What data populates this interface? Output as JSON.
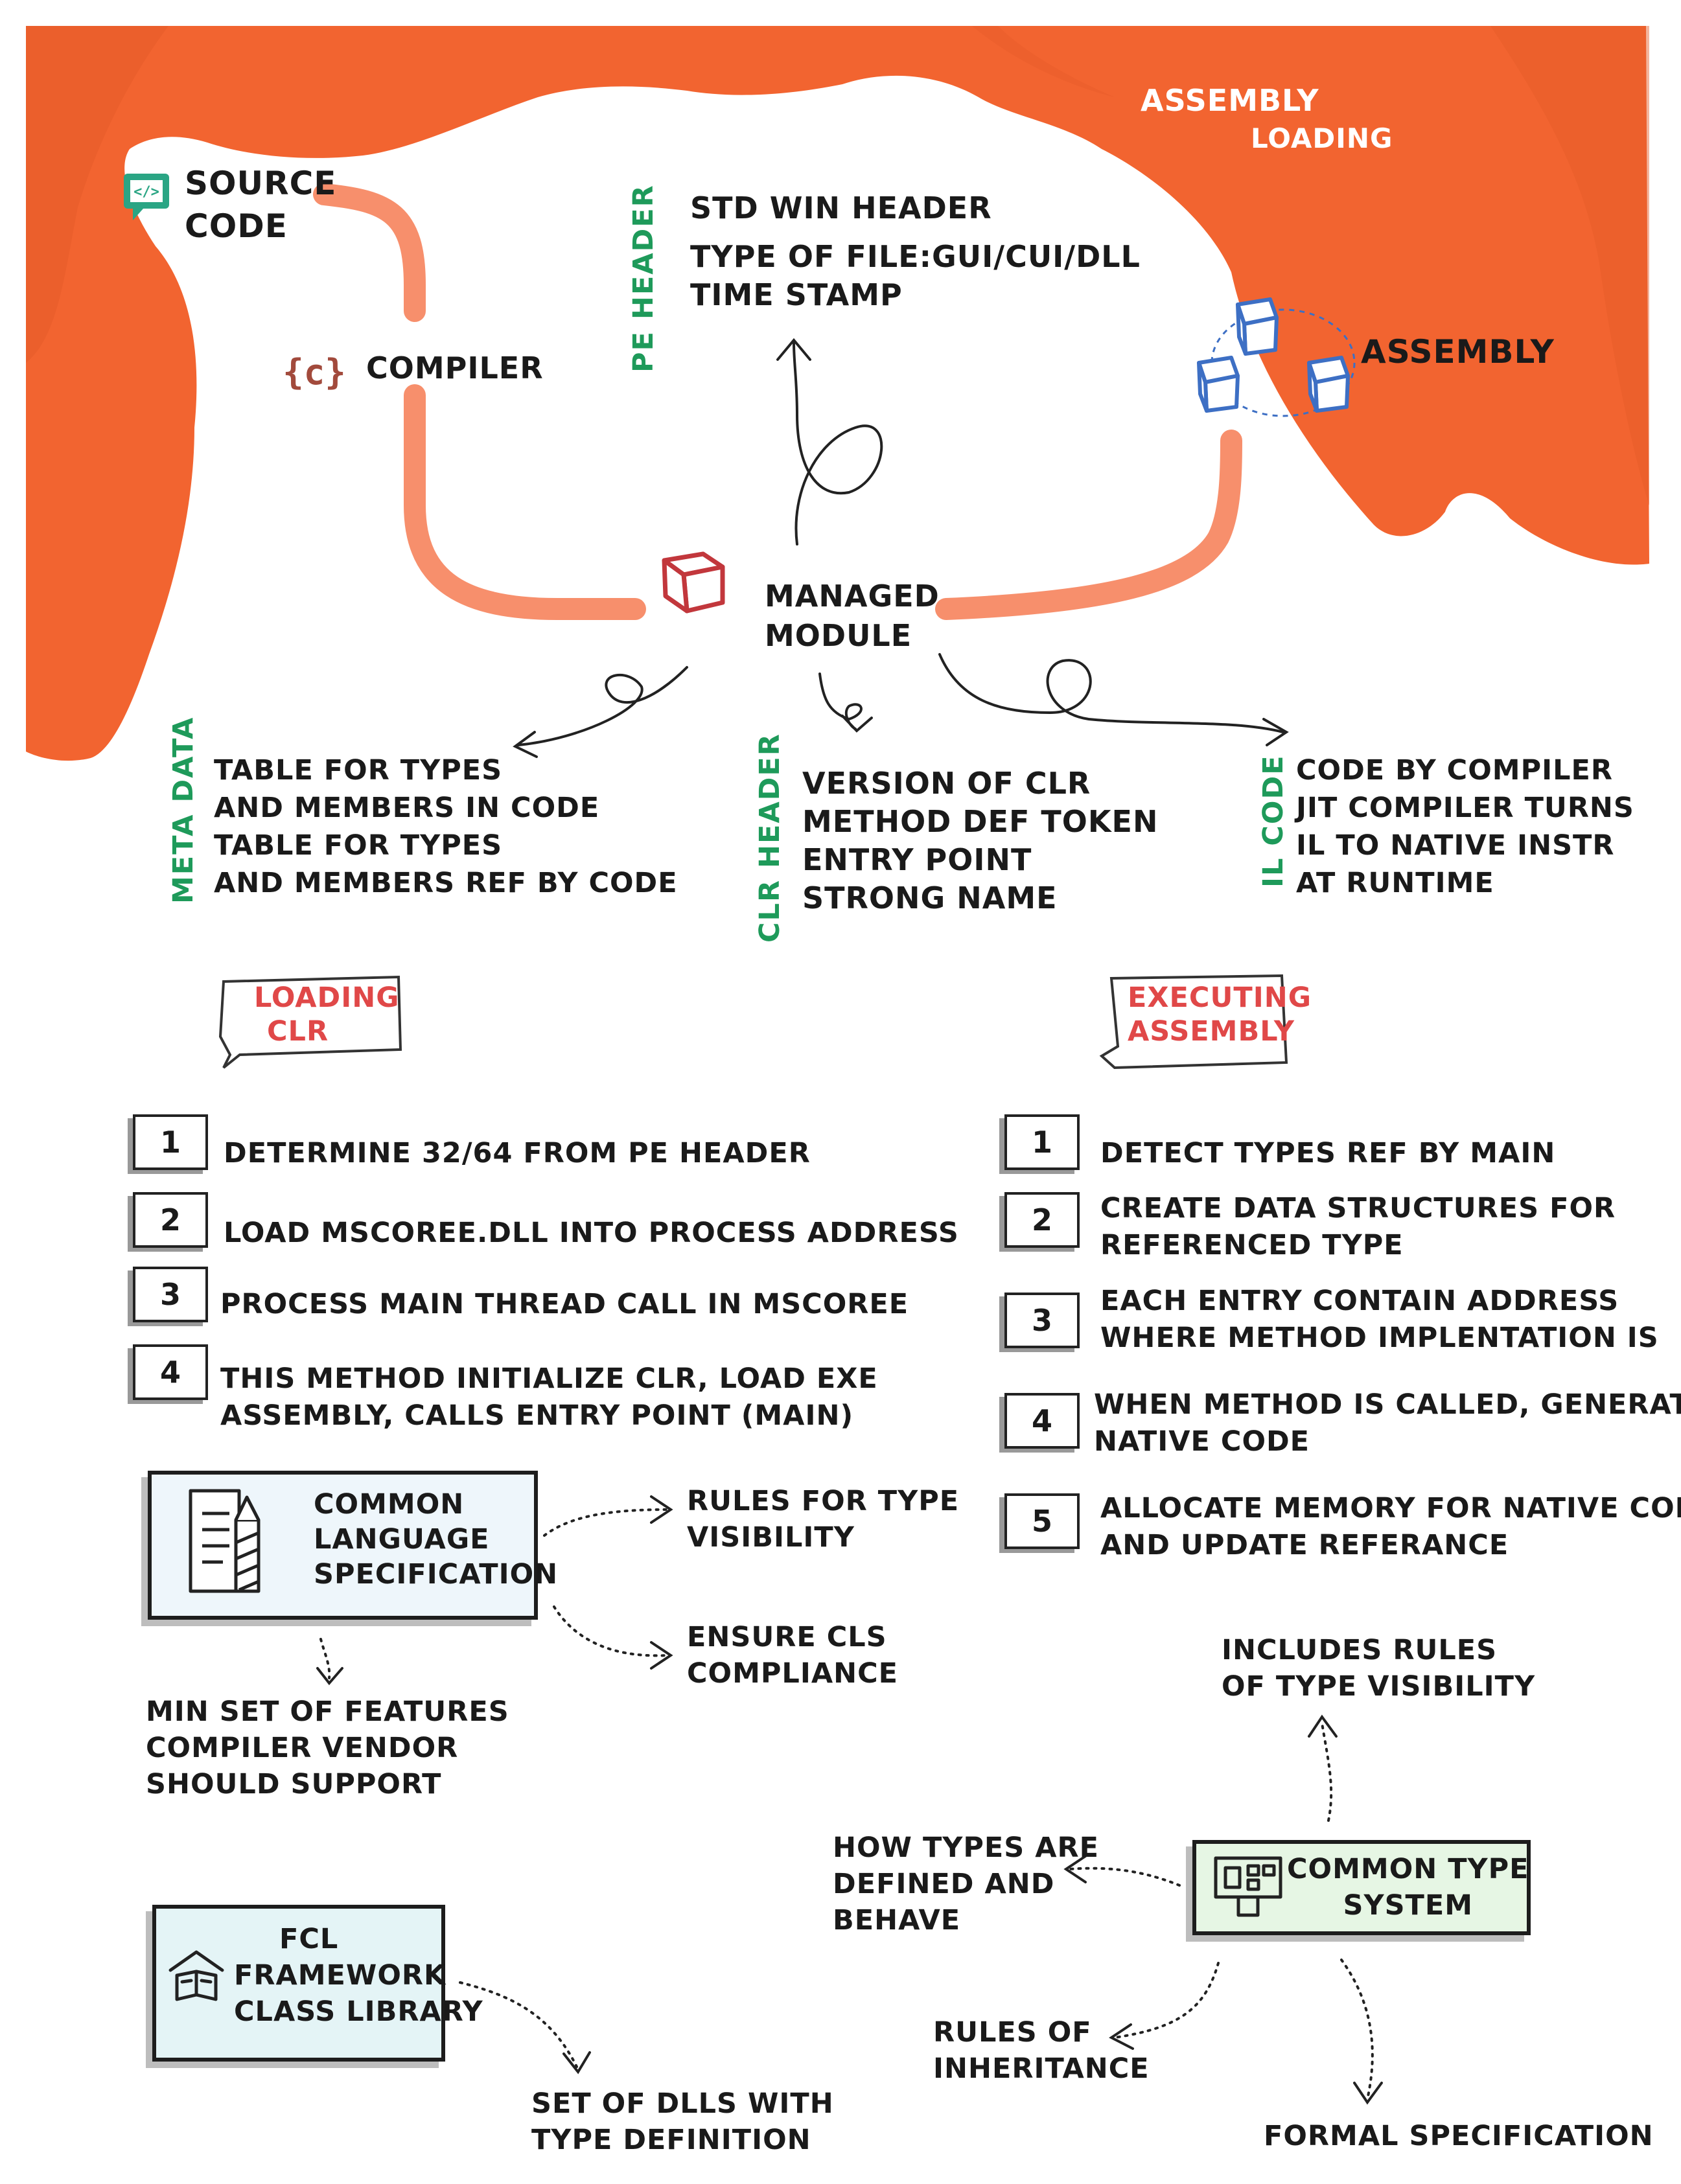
{
  "colors": {
    "curtain": "#f26430",
    "pipe": "#f78f6c",
    "accent_green": "#1e9a5a",
    "accent_red": "#e04848",
    "cube_blue": "#3d6fc4",
    "cube_red": "#c2373c"
  },
  "header": {
    "line1": "ASSEMBLY",
    "line2": "LOADING"
  },
  "source": {
    "line1": "SOURCE",
    "line2": "CODE",
    "icon": "code-monitor-icon"
  },
  "compiler": {
    "label": "COMPILER",
    "icon": "braces-c-icon"
  },
  "pe_header": {
    "tag": "PE HEADER",
    "lines": [
      "STD WIN HEADER",
      "TYPE OF FILE:GUI/CUI/DLL",
      "TIME STAMP"
    ]
  },
  "assembly": {
    "label": "ASSEMBLY",
    "icon": "cubes-icon"
  },
  "managed_module": {
    "line1": "MANAGED",
    "line2": "MODULE",
    "icon": "cube-icon"
  },
  "metadata": {
    "tag": "META DATA",
    "lines": [
      "TABLE FOR TYPES",
      "AND MEMBERS IN CODE",
      "TABLE FOR TYPES",
      "AND MEMBERS REF BY CODE"
    ]
  },
  "clr_header": {
    "tag": "CLR HEADER",
    "lines": [
      "VERSION OF CLR",
      "METHOD DEF TOKEN",
      "ENTRY POINT",
      "STRONG NAME"
    ]
  },
  "il_code": {
    "tag": "IL CODE",
    "lines": [
      "CODE BY COMPILER",
      "JIT COMPILER TURNS",
      "IL TO NATIVE INSTR",
      "AT RUNTIME"
    ]
  },
  "loading_clr": {
    "line1": "LOADING",
    "line2": "CLR",
    "steps": [
      {
        "num": "1",
        "lines": [
          "DETERMINE 32/64 FROM PE HEADER"
        ]
      },
      {
        "num": "2",
        "lines": [
          "LOAD  MSCOREE.DLL INTO PROCESS  ADDRESS"
        ]
      },
      {
        "num": "3",
        "lines": [
          "PROCESS MAIN THREAD CALL IN MSCOREE"
        ]
      },
      {
        "num": "4",
        "lines": [
          "THIS METHOD INITIALIZE CLR, LOAD EXE",
          "ASSEMBLY, CALLS ENTRY POINT (MAIN)"
        ]
      }
    ]
  },
  "executing_assembly": {
    "line1": "EXECUTING",
    "line2": "ASSEMBLY",
    "steps": [
      {
        "num": "1",
        "lines": [
          "DETECT  TYPES REF BY MAIN"
        ]
      },
      {
        "num": "2",
        "lines": [
          "CREATE DATA STRUCTURES FOR",
          "REFERENCED TYPE"
        ]
      },
      {
        "num": "3",
        "lines": [
          "EACH ENTRY CONTAIN ADDRESS",
          "WHERE  METHOD IMPLENTATION IS"
        ]
      },
      {
        "num": "4",
        "lines": [
          "WHEN METHOD IS CALLED, GENERATE",
          "NATIVE CODE"
        ]
      },
      {
        "num": "5",
        "lines": [
          "ALLOCATE MEMORY FOR NATIVE CODE",
          "AND UPDATE  REFERANCE"
        ]
      }
    ]
  },
  "cls": {
    "lines": [
      "COMMON",
      "LANGUAGE",
      "SPECIFICATION"
    ],
    "icon": "document-pencil-icon",
    "rule1": [
      "RULES FOR TYPE",
      "VISIBILITY"
    ],
    "rule2": [
      "ENSURE CLS",
      "COMPLIANCE"
    ],
    "min_set": [
      "MIN SET OF FEATURES",
      "COMPILER VENDOR",
      "SHOULD SUPPORT"
    ]
  },
  "fcl": {
    "lines": [
      "FCL",
      "FRAMEWORK",
      "CLASS LIBRARY"
    ],
    "icon": "library-book-icon",
    "dlls": [
      "SET OF DLLS WITH",
      "TYPE DEFINITION"
    ]
  },
  "cts": {
    "lines": [
      "COMMON TYPE",
      "SYSTEM"
    ],
    "icon": "structure-icon",
    "includes": [
      "INCLUDES RULES",
      "OF TYPE VISIBILITY"
    ],
    "how": [
      "HOW TYPES ARE",
      "DEFINED AND",
      "BEHAVE"
    ],
    "inherit": [
      "RULES OF",
      "INHERITANCE"
    ],
    "formal": [
      "FORMAL SPECIFICATION"
    ]
  }
}
